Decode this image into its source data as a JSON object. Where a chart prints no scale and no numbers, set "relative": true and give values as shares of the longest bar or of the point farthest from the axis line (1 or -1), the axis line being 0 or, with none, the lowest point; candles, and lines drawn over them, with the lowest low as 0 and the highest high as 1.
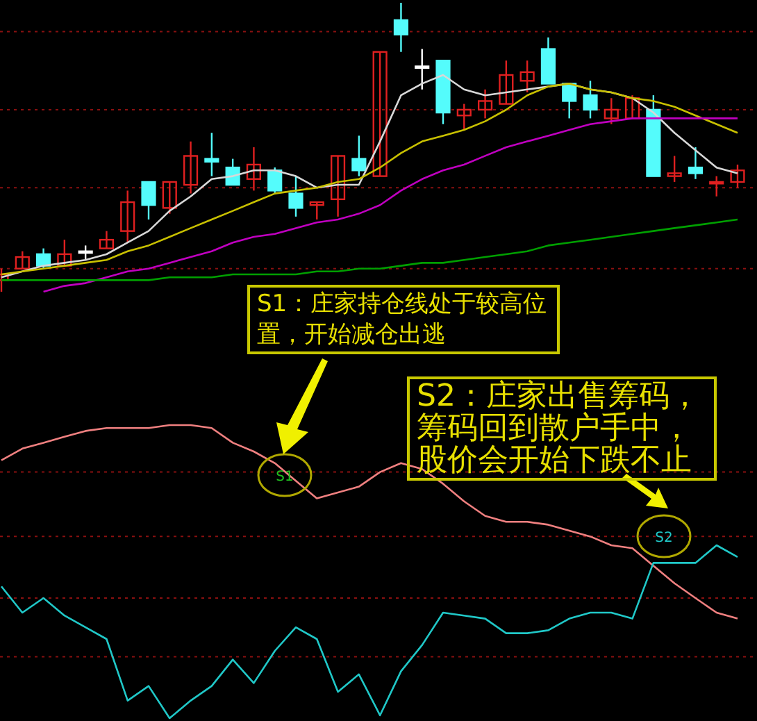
{
  "chart_data": [
    {
      "type": "candlestick",
      "relative": true,
      "ref_lines": [
        {
          "axis": "y",
          "value": 0.9,
          "color": "#8a1010",
          "line_style": "dotted"
        },
        {
          "axis": "y",
          "value": 0.63,
          "color": "#8a1010",
          "line_style": "dotted"
        },
        {
          "axis": "y",
          "value": 0.36,
          "color": "#8a1010",
          "line_style": "dotted"
        },
        {
          "axis": "y",
          "value": 0.08,
          "color": "#8a1010",
          "line_style": "dotted"
        }
      ],
      "categories": [
        null,
        null,
        null,
        null,
        null,
        null,
        null,
        null,
        null,
        null,
        null,
        null,
        null,
        null,
        null,
        null,
        null,
        null,
        null,
        null,
        null,
        null,
        null,
        null,
        null,
        null,
        null,
        null,
        null,
        null,
        null,
        null,
        null,
        null,
        null,
        null
      ],
      "ohlc": [
        [
          0.04,
          0.08,
          0,
          0.06
        ],
        [
          0.08,
          0.14,
          0.08,
          0.12
        ],
        [
          0.13,
          0.15,
          0.08,
          0.09
        ],
        [
          0.09,
          0.18,
          0.09,
          0.13
        ],
        [
          0.14,
          0.16,
          0.11,
          0.14
        ],
        [
          0.15,
          0.21,
          0.15,
          0.18
        ],
        [
          0.21,
          0.35,
          0.17,
          0.31
        ],
        [
          0.38,
          0.38,
          0.25,
          0.3
        ],
        [
          0.29,
          0.38,
          0.27,
          0.38
        ],
        [
          0.37,
          0.52,
          0.34,
          0.47
        ],
        [
          0.46,
          0.55,
          0.4,
          0.45
        ],
        [
          0.43,
          0.46,
          0.37,
          0.37
        ],
        [
          0.39,
          0.5,
          0.35,
          0.44
        ],
        [
          0.42,
          0.43,
          0.34,
          0.35
        ],
        [
          0.34,
          0.4,
          0.26,
          0.29
        ],
        [
          0.3,
          0.31,
          0.25,
          0.31
        ],
        [
          0.32,
          0.47,
          0.26,
          0.47
        ],
        [
          0.46,
          0.54,
          0.4,
          0.42
        ],
        [
          0.4,
          0.83,
          0.4,
          0.83
        ],
        [
          0.94,
          1,
          0.83,
          0.89
        ],
        [
          0.78,
          0.84,
          0.7,
          0.78
        ],
        [
          0.8,
          0.8,
          0.58,
          0.62
        ],
        [
          0.61,
          0.65,
          0.56,
          0.63
        ],
        [
          0.63,
          0.7,
          0.6,
          0.66
        ],
        [
          0.65,
          0.8,
          0.65,
          0.75
        ],
        [
          0.73,
          0.8,
          0.69,
          0.76
        ],
        [
          0.84,
          0.88,
          0.72,
          0.72
        ],
        [
          0.72,
          0.72,
          0.6,
          0.66
        ],
        [
          0.68,
          0.73,
          0.6,
          0.63
        ],
        [
          0.6,
          0.67,
          0.58,
          0.63
        ],
        [
          0.6,
          0.68,
          0.6,
          0.67
        ],
        [
          0.63,
          0.68,
          0.4,
          0.4
        ],
        [
          0.4,
          0.47,
          0.38,
          0.41
        ],
        [
          0.43,
          0.5,
          0.39,
          0.41
        ],
        [
          0.38,
          0.4,
          0.33,
          0.38
        ],
        [
          0.38,
          0.44,
          0.36,
          0.42
        ]
      ],
      "colors": [
        "#e02020",
        "#e02020",
        "#54fcfc",
        "#e02020",
        "#ffffff",
        "#e02020",
        "#e02020",
        "#54fcfc",
        "#e02020",
        "#e02020",
        "#54fcfc",
        "#54fcfc",
        "#e02020",
        "#54fcfc",
        "#54fcfc",
        "#e02020",
        "#e02020",
        "#54fcfc",
        "#e02020",
        "#54fcfc",
        "#ffffff",
        "#54fcfc",
        "#e02020",
        "#e02020",
        "#e02020",
        "#e02020",
        "#54fcfc",
        "#54fcfc",
        "#54fcfc",
        "#e02020",
        "#e02020",
        "#54fcfc",
        "#e02020",
        "#54fcfc",
        "#e02020",
        "#e02020"
      ],
      "series": [
        {
          "type": "line",
          "color": "#d8d8d8",
          "values": [
            0.05,
            0.07,
            0.09,
            0.1,
            0.11,
            0.13,
            0.17,
            0.21,
            0.28,
            0.33,
            0.39,
            0.4,
            0.42,
            0.42,
            0.4,
            0.36,
            0.37,
            0.37,
            0.52,
            0.68,
            0.72,
            0.75,
            0.7,
            0.68,
            0.69,
            0.7,
            0.71,
            0.72,
            0.7,
            0.69,
            0.67,
            0.62,
            0.55,
            0.49,
            0.43,
            0.41
          ]
        },
        {
          "type": "line",
          "color": "#c8c000",
          "values": [
            0.06,
            0.07,
            0.08,
            0.09,
            0.1,
            0.11,
            0.14,
            0.16,
            0.19,
            0.22,
            0.25,
            0.28,
            0.31,
            0.34,
            0.35,
            0.36,
            0.38,
            0.39,
            0.43,
            0.48,
            0.52,
            0.54,
            0.56,
            0.59,
            0.63,
            0.68,
            0.71,
            0.72,
            0.7,
            0.69,
            0.67,
            0.66,
            0.64,
            0.61,
            0.58,
            0.55
          ]
        },
        {
          "type": "line",
          "color": "#c000c0",
          "values": [
            null,
            null,
            0.0,
            0.02,
            0.03,
            0.05,
            0.07,
            0.08,
            0.1,
            0.12,
            0.14,
            0.17,
            0.19,
            0.2,
            0.22,
            0.24,
            0.25,
            0.27,
            0.3,
            0.35,
            0.39,
            0.42,
            0.44,
            0.47,
            0.5,
            0.52,
            0.54,
            0.56,
            0.58,
            0.59,
            0.6,
            0.6,
            0.6,
            0.6,
            0.6,
            0.6
          ]
        },
        {
          "type": "line",
          "color": "#00a000",
          "values": [
            0.04,
            0.04,
            0.04,
            0.04,
            0.04,
            0.04,
            0.04,
            0.04,
            0.05,
            0.05,
            0.05,
            0.06,
            0.06,
            0.06,
            0.06,
            0.07,
            0.07,
            0.08,
            0.08,
            0.09,
            0.1,
            0.1,
            0.11,
            0.12,
            0.13,
            0.14,
            0.16,
            0.17,
            0.18,
            0.19,
            0.2,
            0.21,
            0.22,
            0.23,
            0.24,
            0.25
          ]
        }
      ]
    },
    {
      "type": "line",
      "relative": true,
      "ref_lines": [
        {
          "axis": "y",
          "value": 0.84,
          "color": "#8a1010",
          "line_style": "dotted"
        },
        {
          "axis": "y",
          "value": 0.62,
          "color": "#8a1010",
          "line_style": "dotted"
        },
        {
          "axis": "y",
          "value": 0.41,
          "color": "#8a1010",
          "line_style": "dotted"
        },
        {
          "axis": "y",
          "value": 0.21,
          "color": "#8a1010",
          "line_style": "dotted"
        }
      ],
      "categories": [
        null,
        null,
        null,
        null,
        null,
        null,
        null,
        null,
        null,
        null,
        null,
        null,
        null,
        null,
        null,
        null,
        null,
        null,
        null,
        null,
        null,
        null,
        null,
        null,
        null,
        null,
        null,
        null,
        null,
        null,
        null,
        null,
        null,
        null,
        null,
        null
      ],
      "series": [
        {
          "color": "#f08080",
          "values": [
            0.88,
            0.92,
            0.94,
            0.96,
            0.98,
            0.99,
            0.99,
            0.99,
            1.0,
            1.0,
            0.99,
            0.94,
            0.91,
            0.87,
            0.81,
            0.75,
            0.77,
            0.79,
            0.84,
            0.87,
            0.85,
            0.8,
            0.74,
            0.69,
            0.67,
            0.67,
            0.66,
            0.64,
            0.62,
            0.59,
            0.58,
            0.52,
            0.46,
            0.41,
            0.36,
            0.34
          ]
        },
        {
          "color": "#20c8c8",
          "values": [
            0.45,
            0.36,
            0.41,
            0.35,
            0.31,
            0.27,
            0.06,
            0.11,
            0.0,
            0.06,
            0.11,
            0.2,
            0.12,
            0.23,
            0.31,
            0.27,
            0.09,
            0.15,
            0.01,
            0.16,
            0.25,
            0.36,
            0.35,
            0.34,
            0.29,
            0.29,
            0.3,
            0.34,
            0.36,
            0.36,
            0.34,
            0.53,
            0.53,
            0.53,
            0.59,
            0.55
          ]
        }
      ],
      "annotations": [
        "S1：庄家持仓线处于较高位置，开始减仓出逃",
        "S1",
        "S2：庄家出售筹码，筹码回到散户手中，股价会开始下跌不止",
        "S2"
      ]
    }
  ]
}
